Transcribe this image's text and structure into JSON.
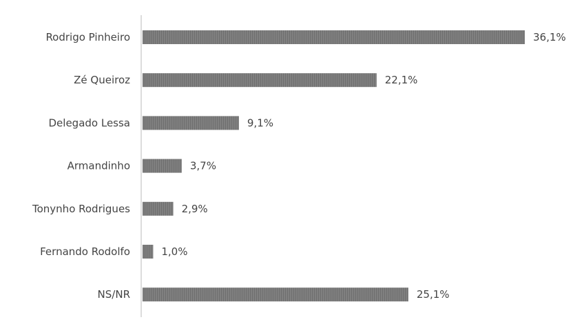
{
  "chart_data": {
    "type": "bar",
    "orientation": "horizontal",
    "categories": [
      "Rodrigo Pinheiro",
      "Zé Queiroz",
      "Delegado Lessa",
      "Armandinho",
      "Tonynho Rodrigues",
      "Fernando Rodolfo",
      "NS/NR"
    ],
    "values": [
      36.1,
      22.1,
      9.1,
      3.7,
      2.9,
      1.0,
      25.1
    ],
    "labels": [
      "36,1%",
      "22,1%",
      "9,1%",
      "3,7%",
      "2,9%",
      "1,0%",
      "25,1%"
    ],
    "title": "",
    "xlabel": "",
    "ylabel": "",
    "xlim": [
      0,
      38
    ],
    "grid": false,
    "bar_color": "#7a7a7a",
    "axis_color": "#d0d0d0"
  }
}
